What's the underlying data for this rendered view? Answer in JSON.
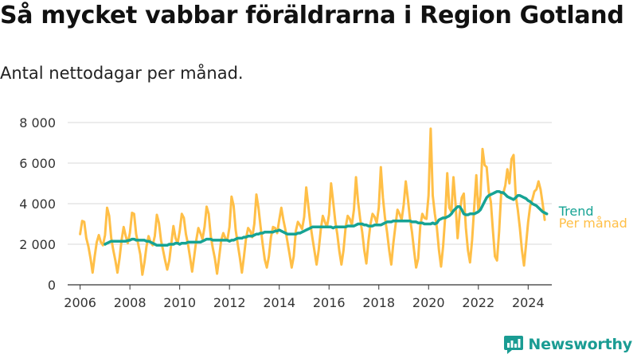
{
  "title": "Så mycket vabbar föräldrarna i Region Gotland",
  "subtitle": "Antal nettodagar per månad.",
  "logo_text": "Newsworthy",
  "colors": {
    "per_month": "#ffbf47",
    "trend": "#16a394",
    "grid": "#d9d9d9",
    "axis": "#333333"
  },
  "chart_data": {
    "type": "line",
    "title": "Så mycket vabbar föräldrarna i Region Gotland",
    "subtitle": "Antal nettodagar per månad.",
    "xlabel": "",
    "ylabel": "",
    "xlim": [
      2005.5,
      2024.95
    ],
    "ylim": [
      0,
      8000
    ],
    "x_ticks": [
      2006,
      2008,
      2010,
      2012,
      2014,
      2016,
      2018,
      2020,
      2022,
      2024
    ],
    "x_tick_labels": [
      "2006",
      "2008",
      "2010",
      "2012",
      "2014",
      "2016",
      "2018",
      "2020",
      "2022",
      "2024"
    ],
    "y_ticks": [
      0,
      2000,
      4000,
      6000,
      8000
    ],
    "y_tick_labels": [
      "0",
      "2 000",
      "4 000",
      "6 000",
      "8 000"
    ],
    "grid": true,
    "series": [
      {
        "name": "Per månad",
        "x_start": 2006.0,
        "x_step": 0.08333,
        "values": [
          2500,
          3150,
          3100,
          2300,
          1900,
          1300,
          600,
          1400,
          2100,
          2450,
          2100,
          1950,
          2450,
          3800,
          3400,
          2300,
          1700,
          1200,
          600,
          1300,
          2200,
          2850,
          2400,
          2050,
          2550,
          3550,
          3500,
          2500,
          2000,
          1500,
          500,
          1100,
          1900,
          2400,
          2100,
          1950,
          2400,
          3450,
          3050,
          2200,
          1700,
          1200,
          750,
          1200,
          2050,
          2900,
          2300,
          2050,
          2650,
          3500,
          3300,
          2500,
          2000,
          1350,
          650,
          1400,
          2200,
          2800,
          2550,
          2250,
          2850,
          3850,
          3500,
          2400,
          1800,
          1300,
          550,
          1350,
          2200,
          2550,
          2300,
          2200,
          2850,
          4350,
          3900,
          2700,
          2000,
          1350,
          600,
          1400,
          2300,
          2800,
          2650,
          2350,
          3000,
          4450,
          3800,
          2850,
          2000,
          1250,
          850,
          1400,
          2350,
          2850,
          2800,
          2550,
          3200,
          3800,
          3200,
          2700,
          2100,
          1500,
          850,
          1400,
          2650,
          3100,
          2950,
          2750,
          3350,
          4800,
          3900,
          3000,
          2300,
          1650,
          1000,
          1700,
          2700,
          3400,
          3100,
          2850,
          3450,
          5000,
          4100,
          3150,
          2500,
          1650,
          1000,
          1700,
          2850,
          3400,
          3250,
          2950,
          3700,
          5300,
          4100,
          3250,
          2600,
          1700,
          1050,
          2150,
          3000,
          3500,
          3350,
          3050,
          3800,
          5800,
          4300,
          3300,
          2600,
          1700,
          1000,
          2050,
          2900,
          3700,
          3500,
          3200,
          3950,
          5100,
          4250,
          3300,
          2600,
          1700,
          850,
          1300,
          2900,
          3500,
          3300,
          3250,
          4400,
          7700,
          4400,
          3500,
          2800,
          1700,
          900,
          1900,
          3350,
          5500,
          3800,
          3600,
          5300,
          4000,
          2300,
          3500,
          4300,
          4500,
          2800,
          1700,
          1100,
          2200,
          3850,
          5400,
          3600,
          4400,
          6700,
          5900,
          5800,
          4600,
          4100,
          2700,
          1400,
          1200,
          2600,
          4500,
          4500,
          4900,
          5700,
          5000,
          6200,
          6400,
          4400,
          3700,
          2800,
          1700,
          950,
          2000,
          3100,
          3900,
          4200,
          4600,
          4700,
          5100,
          4700,
          4000,
          3200
        ]
      },
      {
        "name": "Trend",
        "x_start": 2007.0,
        "x_step": 0.08333,
        "values": [
          2000,
          2050,
          2100,
          2150,
          2150,
          2150,
          2150,
          2150,
          2150,
          2150,
          2150,
          2180,
          2200,
          2250,
          2250,
          2200,
          2200,
          2200,
          2200,
          2200,
          2150,
          2150,
          2100,
          2050,
          2000,
          1950,
          1950,
          1950,
          1950,
          1950,
          1950,
          2000,
          2000,
          2000,
          2050,
          2050,
          2000,
          2050,
          2050,
          2050,
          2100,
          2100,
          2100,
          2100,
          2100,
          2100,
          2100,
          2150,
          2200,
          2250,
          2250,
          2250,
          2200,
          2200,
          2200,
          2200,
          2200,
          2200,
          2200,
          2200,
          2150,
          2200,
          2200,
          2250,
          2300,
          2300,
          2300,
          2350,
          2350,
          2400,
          2400,
          2400,
          2450,
          2500,
          2500,
          2550,
          2550,
          2600,
          2600,
          2600,
          2600,
          2600,
          2650,
          2650,
          2700,
          2650,
          2600,
          2550,
          2500,
          2500,
          2500,
          2500,
          2500,
          2550,
          2550,
          2600,
          2650,
          2700,
          2750,
          2800,
          2850,
          2850,
          2850,
          2850,
          2850,
          2850,
          2850,
          2850,
          2850,
          2850,
          2800,
          2850,
          2850,
          2850,
          2850,
          2850,
          2850,
          2900,
          2900,
          2900,
          2900,
          2950,
          3000,
          3000,
          3000,
          2950,
          2950,
          2900,
          2900,
          2900,
          2950,
          2950,
          2950,
          2950,
          3000,
          3050,
          3100,
          3100,
          3100,
          3150,
          3150,
          3150,
          3150,
          3150,
          3150,
          3150,
          3150,
          3150,
          3100,
          3100,
          3100,
          3050,
          3050,
          3050,
          3000,
          3000,
          3000,
          3000,
          3050,
          3000,
          3050,
          3200,
          3250,
          3300,
          3300,
          3350,
          3400,
          3500,
          3650,
          3750,
          3850,
          3850,
          3700,
          3500,
          3450,
          3450,
          3500,
          3500,
          3500,
          3550,
          3600,
          3700,
          3900,
          4100,
          4300,
          4400,
          4450,
          4500,
          4550,
          4600,
          4600,
          4550,
          4550,
          4450,
          4350,
          4300,
          4250,
          4200,
          4300,
          4400,
          4400,
          4350,
          4300,
          4250,
          4150,
          4100,
          4000,
          3950,
          3900,
          3800,
          3700,
          3600,
          3550,
          3500
        ]
      }
    ],
    "legend": [
      "Trend",
      "Per månad"
    ],
    "legend_placement": "right-end"
  }
}
